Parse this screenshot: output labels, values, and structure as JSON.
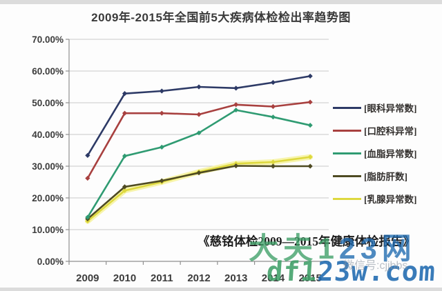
{
  "page": {
    "title": "2009年-2015年全国前5大疾病体检检出率趋势图"
  },
  "chart_data": {
    "type": "line",
    "title": "2009年-2015年全国前5大疾病体检检出率趋势图",
    "categories": [
      "2009",
      "2010",
      "2011",
      "2012",
      "2013",
      "2014",
      "2015"
    ],
    "series": [
      {
        "name": "[眼科异常数]",
        "color": "#2d3a66",
        "marker": "diamond",
        "values": [
          33.4,
          52.9,
          53.7,
          55.0,
          54.6,
          56.4,
          58.4
        ]
      },
      {
        "name": "[口腔科异常]",
        "color": "#a8403f",
        "marker": "diamond",
        "values": [
          26.2,
          46.7,
          46.7,
          46.3,
          49.4,
          48.8,
          50.2
        ]
      },
      {
        "name": "[血脂异常数]",
        "color": "#2f9b72",
        "marker": "diamond",
        "values": [
          13.9,
          33.2,
          36.0,
          40.5,
          47.7,
          45.5,
          42.9
        ]
      },
      {
        "name": "[脂肪肝数]",
        "color": "#4e4a22",
        "marker": "diamond",
        "values": [
          13.4,
          23.5,
          25.4,
          27.9,
          30.1,
          30.0,
          30.0
        ]
      },
      {
        "name": "[乳腺异常数]",
        "color": "#ddd83e",
        "glow": "#f7f3a6",
        "marker": "diamond",
        "values": [
          12.7,
          22.3,
          25.0,
          28.2,
          30.8,
          31.3,
          32.9
        ]
      }
    ],
    "xlabel": "",
    "ylabel": "",
    "ylim": [
      0,
      70
    ],
    "ytick_step": 10,
    "ytick_labels": [
      "0.00%",
      "10.00%",
      "20.00%",
      "30.00%",
      "40.00%",
      "50.00%",
      "60.00%",
      "70.00%"
    ],
    "grid": true,
    "legend_position": "right"
  },
  "watermarks": {
    "citation": "《慈铭体检2009—2015年健康体检报告》",
    "site_cn": "大夫123网",
    "site_url": "df123w.com",
    "green_char_count": 3,
    "wechat": "微信号:cjjbbs"
  },
  "colors": {
    "grid": "#c9c9c9",
    "axis": "#8f8f8f",
    "text": "#3c3c3c",
    "watermark_green": "#3fa068",
    "watermark_blue": "#1e6ab0"
  }
}
